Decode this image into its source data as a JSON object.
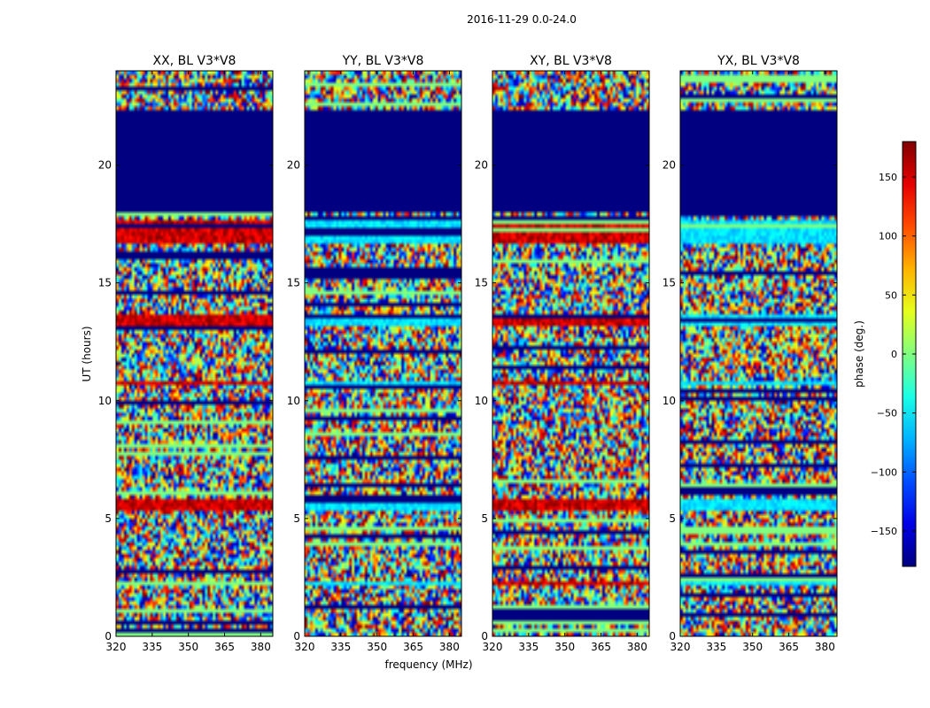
{
  "figure": {
    "suptitle": "2016-11-29 0.0-24.0"
  },
  "chart_data": {
    "type": "heatmap",
    "title": "2016-11-29 0.0-24.0",
    "xlabel": "frequency (MHz)",
    "ylabel": "UT (hours)",
    "xlim": [
      320,
      385
    ],
    "ylim": [
      0,
      24
    ],
    "x_ticks": [
      320,
      335,
      350,
      365,
      380
    ],
    "y_ticks": [
      0,
      5,
      10,
      15,
      20
    ],
    "colorbar": {
      "label": "phase (deg.)",
      "colormap": "jet",
      "range": [
        -180,
        180
      ],
      "ticks": [
        -150,
        -100,
        -50,
        0,
        50,
        100,
        150
      ],
      "tick_labels": [
        "−150",
        "−100",
        "−50",
        "0",
        "50",
        "100",
        "150"
      ]
    },
    "panels": [
      {
        "title": "XX, BL V3*V8",
        "flagged_ut_ranges": [
          [
            18.0,
            22.3
          ]
        ],
        "band_ut_ranges": [
          [
            16.6,
            17.7
          ],
          [
            13.1,
            13.6
          ],
          [
            10.6,
            10.9
          ],
          [
            5.4,
            5.8
          ],
          [
            2.2,
            2.4
          ]
        ]
      },
      {
        "title": "YY, BL V3*V8",
        "flagged_ut_ranges": [
          [
            18.0,
            22.3
          ]
        ],
        "band_ut_ranges": [
          [
            16.6,
            17.7
          ],
          [
            13.1,
            13.6
          ],
          [
            10.6,
            10.9
          ],
          [
            5.4,
            5.8
          ],
          [
            2.2,
            2.4
          ]
        ]
      },
      {
        "title": "XY, BL V3*V8",
        "flagged_ut_ranges": [
          [
            18.0,
            22.3
          ]
        ],
        "band_ut_ranges": [
          [
            16.6,
            17.7
          ],
          [
            13.1,
            13.6
          ],
          [
            10.6,
            10.9
          ],
          [
            5.4,
            5.8
          ],
          [
            2.2,
            2.4
          ]
        ]
      },
      {
        "title": "YX, BL V3*V8",
        "flagged_ut_ranges": [
          [
            18.0,
            22.3
          ]
        ],
        "band_ut_ranges": [
          [
            16.6,
            17.7
          ],
          [
            13.1,
            13.6
          ],
          [
            10.6,
            10.9
          ],
          [
            5.4,
            5.8
          ],
          [
            2.2,
            2.4
          ]
        ]
      }
    ]
  }
}
